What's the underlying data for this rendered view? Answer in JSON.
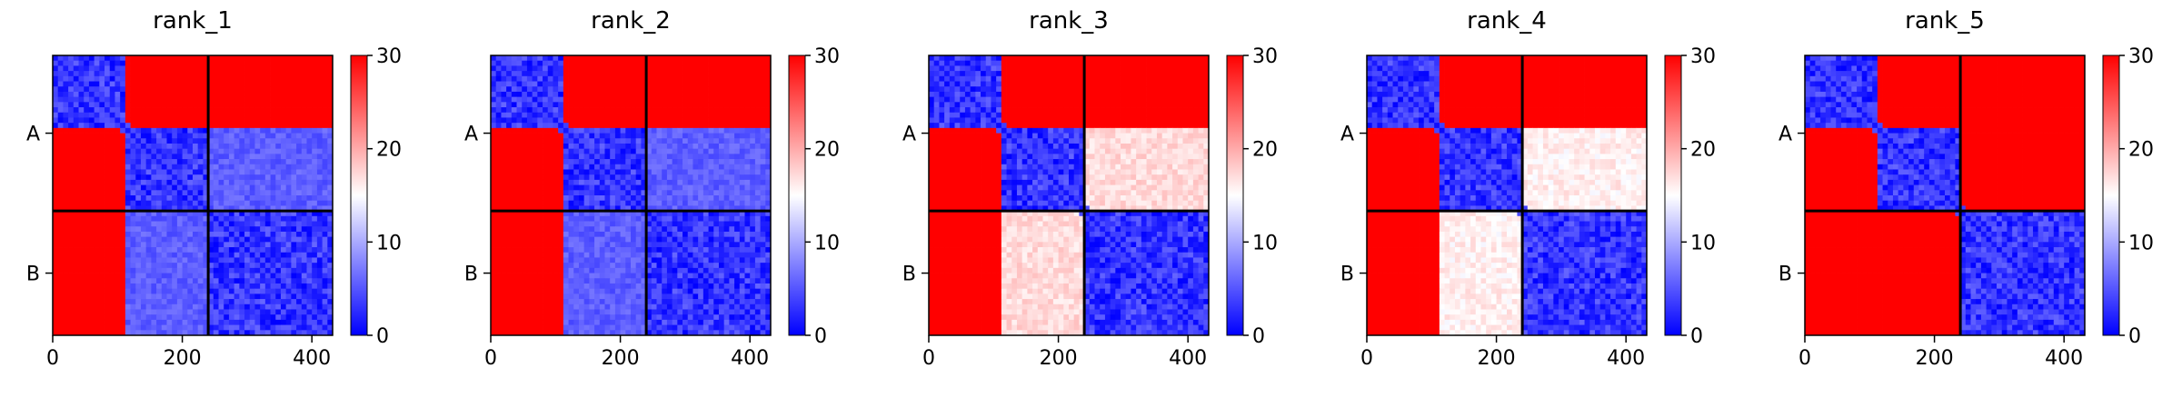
{
  "chart_data": {
    "type": "heatmap",
    "colormap": {
      "name": "bwr",
      "low_color": "#0000ff",
      "mid_color": "#ffffff",
      "high_color": "#ff0000",
      "vmin": 0,
      "vmax": 30,
      "ticks": [
        "0",
        "10",
        "20",
        "30"
      ]
    },
    "axis_range": [
      0,
      432
    ],
    "chain_boundary": 240,
    "chain_lengths": {
      "A": 240,
      "B": 192
    },
    "xticks": [
      {
        "value": 0,
        "label": "0"
      },
      {
        "value": 200,
        "label": "200"
      },
      {
        "value": 400,
        "label": "400"
      }
    ],
    "yticks": [
      {
        "value": 120,
        "label": "A"
      },
      {
        "value": 336,
        "label": "B"
      }
    ],
    "panels": [
      {
        "title": "rank_1",
        "ab_block": 1,
        "ba_block": 1,
        "noise": 1
      },
      {
        "title": "rank_2",
        "ab_block": 1,
        "ba_block": 1,
        "noise": 2
      },
      {
        "title": "rank_3",
        "ab_block": 0.55,
        "ba_block": 0.55,
        "noise": 3
      },
      {
        "title": "rank_4",
        "ab_block": 0.6,
        "ba_block": 0.6,
        "noise": 4
      },
      {
        "title": "rank_5",
        "ab_block": 0,
        "ba_block": 0,
        "noise": 5
      }
    ],
    "domains": [
      [
        0,
        115
      ],
      [
        115,
        240
      ],
      [
        240,
        432
      ]
    ]
  }
}
